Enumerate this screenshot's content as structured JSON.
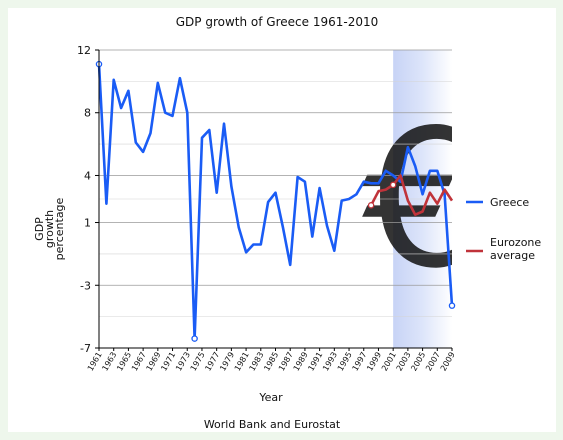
{
  "chart_data": {
    "type": "line",
    "title": "GDP growth of Greece 1961-2010",
    "xlabel": "Year",
    "ylabel": [
      "GDP",
      "growth",
      "percentage"
    ],
    "source": "World Bank and Eurostat",
    "y_ticks": [
      "12",
      "8",
      "4",
      "1",
      "-3",
      "-7"
    ],
    "ylim": [
      -7,
      12
    ],
    "x_ticks": [
      1961,
      1963,
      1965,
      1967,
      1969,
      1971,
      1973,
      1975,
      1977,
      1979,
      1981,
      1983,
      1985,
      1987,
      1989,
      1991,
      1993,
      1995,
      1997,
      1999,
      2001,
      2003,
      2005,
      2007,
      2009
    ],
    "xlim": [
      1961,
      2009
    ],
    "eurozone_period": [
      2001,
      2009
    ],
    "grid": true,
    "legend_position": "right",
    "series": [
      {
        "name": "Greece",
        "color": "#1a5cf5",
        "x": [
          1961,
          1962,
          1963,
          1964,
          1965,
          1966,
          1967,
          1968,
          1969,
          1970,
          1971,
          1972,
          1973,
          1974,
          1975,
          1976,
          1977,
          1978,
          1979,
          1980,
          1981,
          1982,
          1983,
          1984,
          1985,
          1986,
          1987,
          1988,
          1989,
          1990,
          1991,
          1992,
          1993,
          1994,
          1995,
          1996,
          1997,
          1998,
          1999,
          2000,
          2001,
          2002,
          2003,
          2004,
          2005,
          2006,
          2007,
          2008,
          2009
        ],
        "values": [
          11.1,
          2.2,
          10.1,
          8.3,
          9.4,
          6.1,
          5.5,
          6.7,
          9.9,
          8.0,
          7.8,
          10.2,
          8.0,
          -6.4,
          6.4,
          6.9,
          2.9,
          7.3,
          3.3,
          0.7,
          -0.9,
          -0.4,
          -0.4,
          2.3,
          2.9,
          0.7,
          -1.7,
          3.9,
          3.6,
          0.1,
          3.2,
          0.8,
          -0.8,
          2.4,
          2.5,
          2.8,
          3.6,
          3.5,
          3.5,
          4.3,
          4.0,
          3.6,
          5.8,
          4.6,
          2.8,
          4.3,
          4.3,
          2.8,
          -4.3
        ],
        "markers": [
          1961,
          1974,
          2009
        ]
      },
      {
        "name": "Eurozone average",
        "label_lines": [
          "Eurozone",
          "average"
        ],
        "color": "#c0333a",
        "x": [
          1998,
          1999,
          2000,
          2001,
          2002,
          2003,
          2004,
          2005,
          2006,
          2007,
          2008,
          2009
        ],
        "values": [
          2.1,
          3.0,
          3.1,
          3.4,
          4.0,
          2.4,
          1.5,
          1.7,
          2.9,
          2.2,
          3.1,
          2.4
        ],
        "markers": [
          1998,
          2001
        ]
      }
    ]
  }
}
